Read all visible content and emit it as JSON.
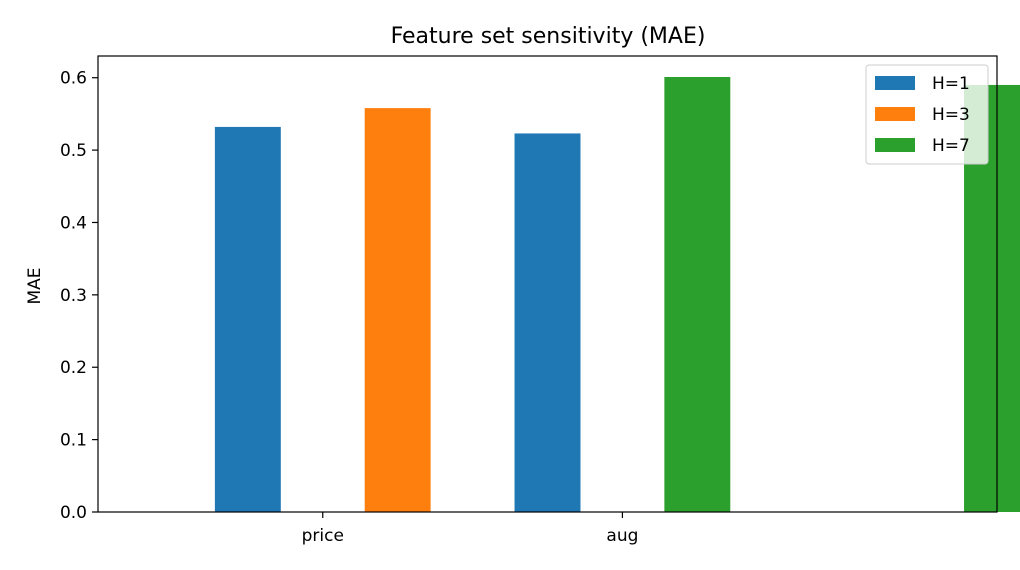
{
  "chart_data": {
    "type": "bar",
    "title": "Feature set sensitivity (MAE)",
    "xlabel": "",
    "ylabel": "MAE",
    "ylim": [
      0.0,
      0.63
    ],
    "yticks": [
      0.0,
      0.1,
      0.2,
      0.3,
      0.4,
      0.5,
      0.6
    ],
    "ytick_labels": [
      "0.0",
      "0.1",
      "0.2",
      "0.3",
      "0.4",
      "0.5",
      "0.6"
    ],
    "xlim": [
      -0.5,
      2.5
    ],
    "xticks": [
      0.25,
      1.25
    ],
    "xtick_labels": [
      "price",
      "aug"
    ],
    "grid": false,
    "legend_position": "top-right",
    "bar_width": 0.22,
    "series": [
      {
        "name": "H=1",
        "color": "#1f77b4",
        "x": [
          0.0,
          1.0
        ],
        "values": [
          0.532,
          0.523
        ]
      },
      {
        "name": "H=3",
        "color": "#ff7f0e",
        "x": [
          0.5
        ],
        "values": [
          0.558
        ]
      },
      {
        "name": "H=7",
        "color": "#2ca02c",
        "x": [
          1.5,
          2.5
        ],
        "values": [
          0.601,
          0.59
        ]
      }
    ]
  }
}
